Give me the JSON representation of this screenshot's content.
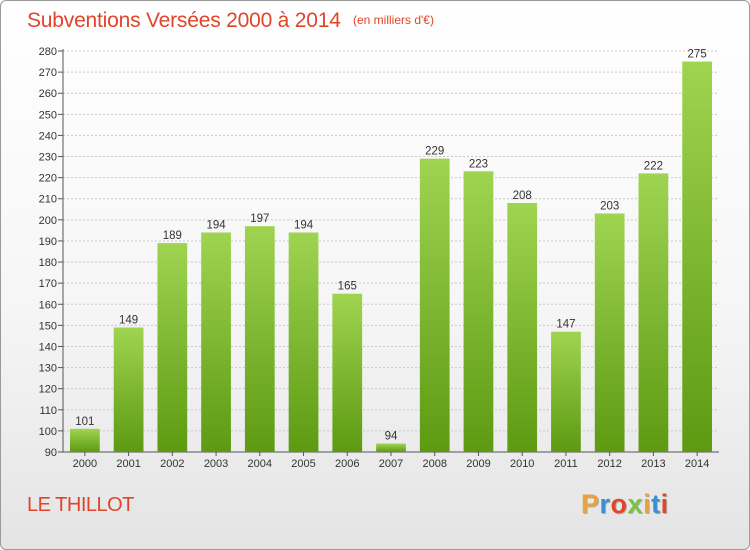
{
  "header": {
    "title": "Subventions Versées 2000 à 2014",
    "subtitle": "(en milliers d'€)"
  },
  "footer": {
    "place": "LE THILLOT",
    "logo": "Proxiti",
    "logo_colors": [
      "#e8a33a",
      "#3a8fd1",
      "#e0452a",
      "#7cc142",
      "#e8a33a",
      "#3a8fd1",
      "#e0452a"
    ]
  },
  "colors": {
    "bar_light": "#9fd451",
    "bar_dark": "#5d9a12",
    "text_accent": "#e0452a"
  },
  "chart_data": {
    "type": "bar",
    "categories": [
      "2000",
      "2001",
      "2002",
      "2003",
      "2004",
      "2005",
      "2006",
      "2007",
      "2008",
      "2009",
      "2010",
      "2011",
      "2012",
      "2013",
      "2014"
    ],
    "values": [
      101,
      149,
      189,
      194,
      197,
      194,
      165,
      94,
      229,
      223,
      208,
      147,
      203,
      222,
      275
    ],
    "title": "Subventions Versées 2000 à 2014",
    "ylim": [
      90,
      280
    ],
    "ytick_step": 10,
    "grid": true
  }
}
